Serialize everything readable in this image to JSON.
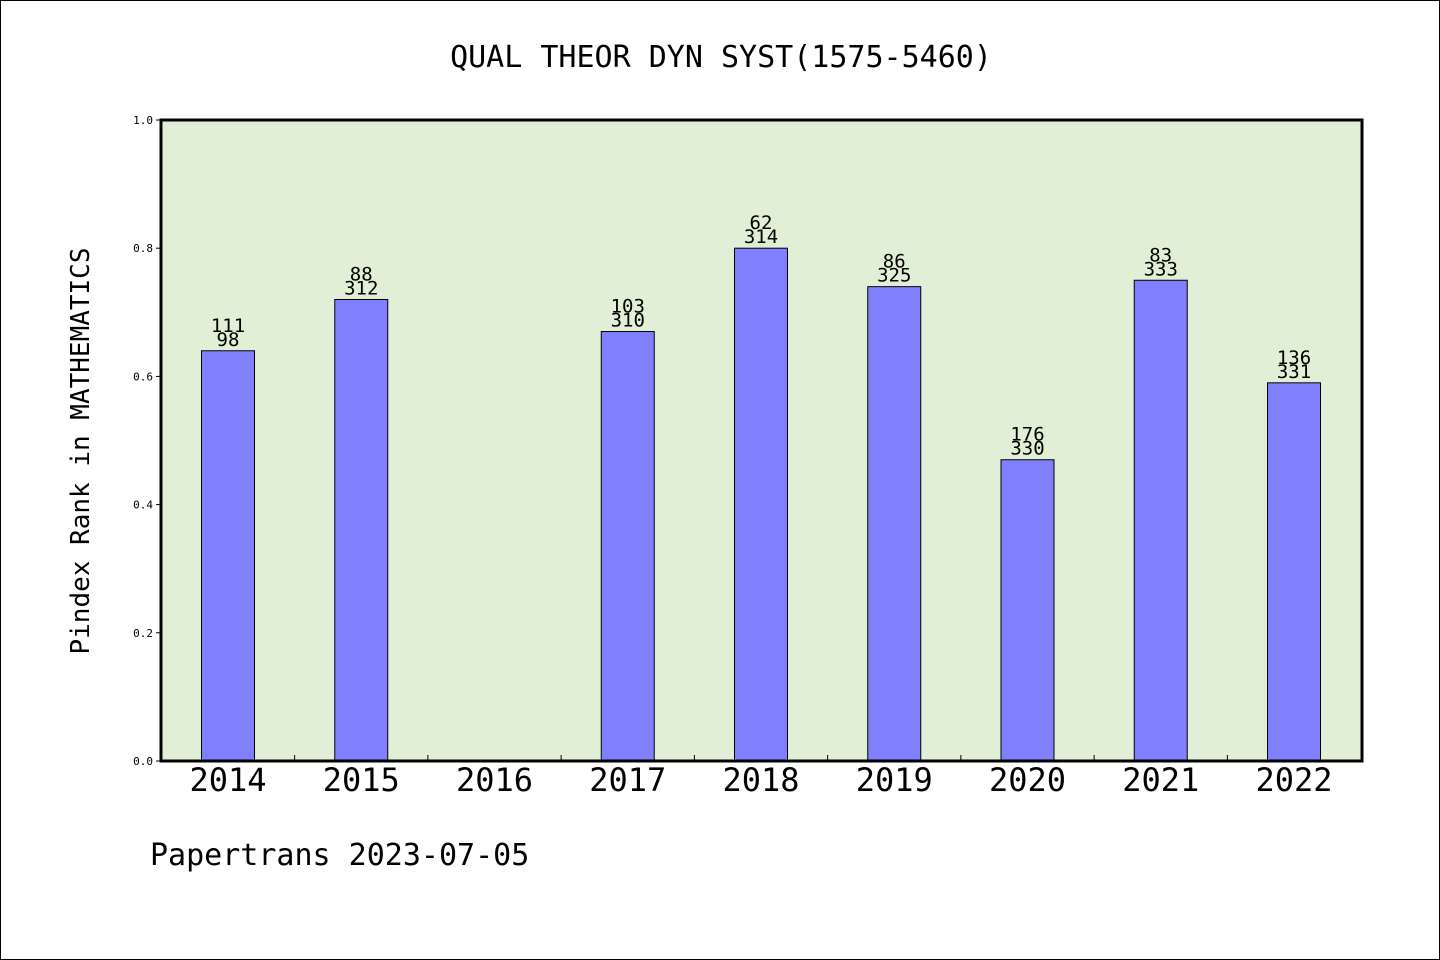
{
  "chart_data": {
    "type": "bar",
    "title": "QUAL THEOR DYN SYST(1575-5460)",
    "xlabel": "",
    "ylabel": "Pindex Rank in MATHEMATICS",
    "ylim": [
      0,
      1.0
    ],
    "yticks": [
      "0.0",
      "0.2",
      "0.4",
      "0.6",
      "0.8",
      "1.0"
    ],
    "grid": false,
    "categories": [
      "2014",
      "2015",
      "2016",
      "2017",
      "2018",
      "2019",
      "2020",
      "2021",
      "2022"
    ],
    "values": [
      0.64,
      0.72,
      null,
      0.67,
      0.8,
      0.74,
      0.47,
      0.75,
      0.59
    ],
    "labels_top": [
      "111",
      "88",
      "",
      "103",
      "62",
      "86",
      "176",
      "83",
      "136"
    ],
    "labels_bottom": [
      "98",
      "312",
      "",
      "310",
      "314",
      "325",
      "330",
      "333",
      "331"
    ],
    "colors": {
      "bar": "#8080ff",
      "plot_background": "#e2efd7",
      "axis": "#000000"
    }
  },
  "footer": {
    "text": "Papertrans 2023-07-05"
  }
}
